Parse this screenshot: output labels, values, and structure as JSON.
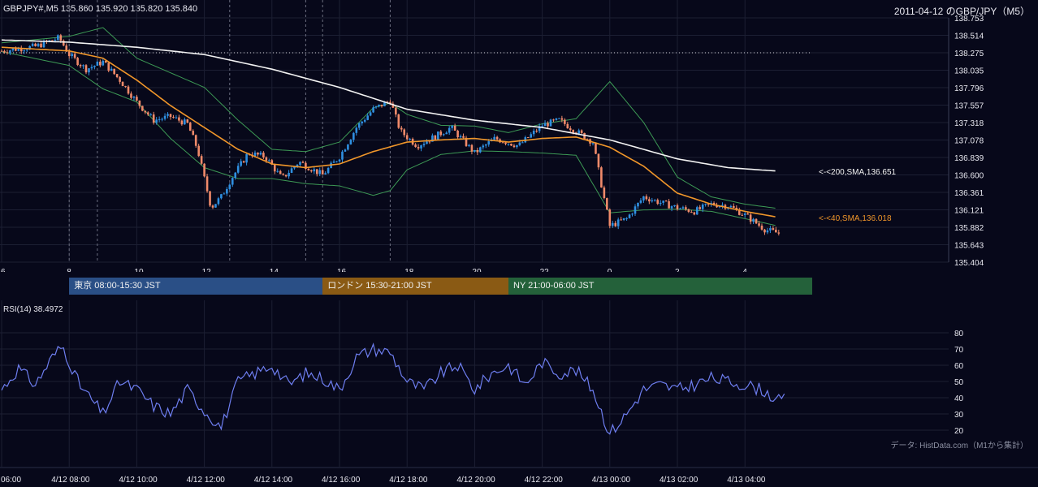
{
  "header": {
    "title": "GBPJPY#,M5 135.860 135.920 135.820 135.840",
    "right_title": "2011-04-12 のGBP/JPY（M5）"
  },
  "sessions": [
    {
      "label": "東京 08:00-15:30 JST",
      "color": "#2a4f86",
      "start_hour": 8,
      "end_hour": 15.5
    },
    {
      "label": "ロンドン 15:30-21:00 JST",
      "color": "#8a5a14",
      "start_hour": 15.5,
      "end_hour": 21
    },
    {
      "label": "NY 21:00-06:00 JST",
      "color": "#24613a",
      "start_hour": 21,
      "end_hour": 30
    }
  ],
  "rsi_title": "RSI(14) 38.4972",
  "credit": "データ: HistData.com（M1から集計）",
  "chart_data": [
    {
      "type": "candlestick",
      "title": "GBPJPY#,M5 135.860 135.920 135.820 135.840",
      "x_start_hour": 6,
      "x_end_hour": 30,
      "x_tick_labels": [
        "6",
        "8",
        "10",
        "12",
        "14",
        "16",
        "18",
        "20",
        "22",
        "0",
        "2",
        "4"
      ],
      "x_tick_hours": [
        6,
        8,
        10,
        12,
        14,
        16,
        18,
        20,
        22,
        24,
        26,
        28
      ],
      "ylim": [
        135.404,
        138.753
      ],
      "y_tick_labels": [
        "138.753",
        "138.514",
        "138.275",
        "138.035",
        "137.796",
        "137.557",
        "137.318",
        "137.078",
        "136.839",
        "136.600",
        "136.361",
        "136.121",
        "135.882",
        "135.643",
        "135.404"
      ],
      "dotted_price_line": 138.275,
      "session_markers_hours": [
        8,
        8.833,
        12.75,
        15,
        15.5,
        17.5
      ],
      "colors": {
        "up": "#2f8fe0",
        "down": "#f08a6a",
        "sma40": "#f0962a",
        "sma200": "#f2f2f2",
        "bands": "#3d9a55"
      },
      "close_anchors": [
        [
          6,
          138.3
        ],
        [
          7,
          138.36
        ],
        [
          7.7,
          138.48
        ],
        [
          8,
          138.25
        ],
        [
          8.5,
          138.05
        ],
        [
          9,
          138.15
        ],
        [
          9.5,
          137.9
        ],
        [
          10,
          137.6
        ],
        [
          10.5,
          137.35
        ],
        [
          11,
          137.4
        ],
        [
          11.5,
          137.3
        ],
        [
          11.8,
          136.95
        ],
        [
          12.2,
          136.15
        ],
        [
          12.5,
          136.3
        ],
        [
          12.8,
          136.55
        ],
        [
          13.3,
          136.9
        ],
        [
          13.8,
          136.85
        ],
        [
          14.3,
          136.55
        ],
        [
          14.8,
          136.78
        ],
        [
          15.5,
          136.6
        ],
        [
          16,
          136.85
        ],
        [
          16.5,
          137.25
        ],
        [
          17,
          137.5
        ],
        [
          17.5,
          137.62
        ],
        [
          17.8,
          137.2
        ],
        [
          18.3,
          137.0
        ],
        [
          18.8,
          137.12
        ],
        [
          19.3,
          137.25
        ],
        [
          20,
          136.9
        ],
        [
          20.6,
          137.1
        ],
        [
          21.3,
          137.0
        ],
        [
          22,
          137.28
        ],
        [
          22.5,
          137.35
        ],
        [
          23.5,
          137.05
        ],
        [
          23.8,
          136.35
        ],
        [
          24,
          135.9
        ],
        [
          24.5,
          136.0
        ],
        [
          25,
          136.3
        ],
        [
          25.5,
          136.22
        ],
        [
          26,
          136.15
        ],
        [
          26.5,
          136.1
        ],
        [
          27,
          136.2
        ],
        [
          27.5,
          136.18
        ],
        [
          28,
          136.05
        ],
        [
          28.6,
          135.85
        ],
        [
          29,
          135.8
        ]
      ],
      "sma40_anchors": [
        [
          6,
          138.35
        ],
        [
          8,
          138.3
        ],
        [
          9,
          138.2
        ],
        [
          10,
          137.9
        ],
        [
          11,
          137.55
        ],
        [
          12,
          137.25
        ],
        [
          13,
          136.95
        ],
        [
          14,
          136.75
        ],
        [
          15,
          136.7
        ],
        [
          16,
          136.75
        ],
        [
          17,
          136.92
        ],
        [
          18,
          137.05
        ],
        [
          19,
          137.08
        ],
        [
          20,
          137.1
        ],
        [
          21,
          137.05
        ],
        [
          22,
          137.1
        ],
        [
          23,
          137.12
        ],
        [
          24,
          136.98
        ],
        [
          25,
          136.72
        ],
        [
          26,
          136.35
        ],
        [
          27,
          136.2
        ],
        [
          28,
          136.1
        ],
        [
          29,
          136.018
        ]
      ],
      "sma200_anchors": [
        [
          6,
          138.45
        ],
        [
          8,
          138.42
        ],
        [
          10,
          138.35
        ],
        [
          12,
          138.25
        ],
        [
          14,
          138.05
        ],
        [
          16,
          137.8
        ],
        [
          18,
          137.5
        ],
        [
          20,
          137.35
        ],
        [
          22,
          137.25
        ],
        [
          24,
          137.08
        ],
        [
          26,
          136.82
        ],
        [
          27.5,
          136.7
        ],
        [
          29,
          136.651
        ]
      ],
      "band_width_anchors": [
        [
          6,
          0.06
        ],
        [
          8,
          0.2
        ],
        [
          9,
          0.42
        ],
        [
          10,
          0.3
        ],
        [
          11,
          0.45
        ],
        [
          12,
          0.55
        ],
        [
          13,
          0.4
        ],
        [
          14,
          0.2
        ],
        [
          15,
          0.22
        ],
        [
          16,
          0.3
        ],
        [
          17,
          0.6
        ],
        [
          17.5,
          0.6
        ],
        [
          18,
          0.38
        ],
        [
          19,
          0.2
        ],
        [
          20,
          0.17
        ],
        [
          21,
          0.13
        ],
        [
          22,
          0.2
        ],
        [
          23,
          0.25
        ],
        [
          24,
          0.9
        ],
        [
          25,
          0.6
        ],
        [
          26,
          0.22
        ],
        [
          27,
          0.1
        ],
        [
          28,
          0.1
        ],
        [
          29,
          0.12
        ]
      ],
      "annotations": [
        {
          "text": "<-<200,SMA,136.651",
          "price": 136.651,
          "color": "#f2f2f2"
        },
        {
          "text": "<-<40,SMA,136.018",
          "price": 136.018,
          "color": "#f0962a"
        }
      ]
    },
    {
      "type": "line",
      "title": "RSI(14) 38.4972",
      "ylim": [
        15,
        85
      ],
      "y_tick_labels": [
        "80",
        "70",
        "60",
        "50",
        "40",
        "30",
        "20"
      ],
      "y_ticks": [
        80,
        70,
        60,
        50,
        40,
        30,
        20
      ],
      "x_tick_labels": [
        "06:00",
        "4/12 08:00",
        "4/12 10:00",
        "4/12 12:00",
        "4/12 14:00",
        "4/12 16:00",
        "4/12 18:00",
        "4/12 20:00",
        "4/12 22:00",
        "4/13 00:00",
        "4/13 02:00",
        "4/13 04:00"
      ],
      "x_tick_hours": [
        6,
        8,
        10,
        12,
        14,
        16,
        18,
        20,
        22,
        24,
        26,
        28
      ],
      "line_color": "#6e7ef0",
      "anchors": [
        [
          6,
          45
        ],
        [
          6.5,
          58
        ],
        [
          7,
          48
        ],
        [
          7.5,
          65
        ],
        [
          7.8,
          72
        ],
        [
          8.3,
          48
        ],
        [
          9,
          30
        ],
        [
          9.5,
          50
        ],
        [
          10,
          45
        ],
        [
          10.5,
          35
        ],
        [
          11,
          30
        ],
        [
          11.5,
          45
        ],
        [
          12,
          32
        ],
        [
          12.5,
          22
        ],
        [
          13,
          50
        ],
        [
          13.5,
          55
        ],
        [
          14,
          60
        ],
        [
          14.5,
          48
        ],
        [
          15,
          55
        ],
        [
          15.5,
          52
        ],
        [
          16,
          45
        ],
        [
          16.5,
          65
        ],
        [
          17,
          70
        ],
        [
          17.5,
          68
        ],
        [
          18,
          50
        ],
        [
          18.5,
          45
        ],
        [
          19,
          55
        ],
        [
          19.5,
          60
        ],
        [
          20,
          45
        ],
        [
          20.5,
          55
        ],
        [
          21,
          60
        ],
        [
          21.5,
          48
        ],
        [
          22,
          62
        ],
        [
          22.5,
          55
        ],
        [
          23,
          57
        ],
        [
          23.5,
          45
        ],
        [
          24,
          18
        ],
        [
          24.5,
          30
        ],
        [
          25,
          45
        ],
        [
          25.5,
          48
        ],
        [
          26,
          45
        ],
        [
          26.5,
          48
        ],
        [
          27,
          52
        ],
        [
          27.5,
          50
        ],
        [
          28,
          48
        ],
        [
          28.5,
          45
        ],
        [
          29,
          38
        ],
        [
          29.2,
          39
        ]
      ]
    }
  ]
}
